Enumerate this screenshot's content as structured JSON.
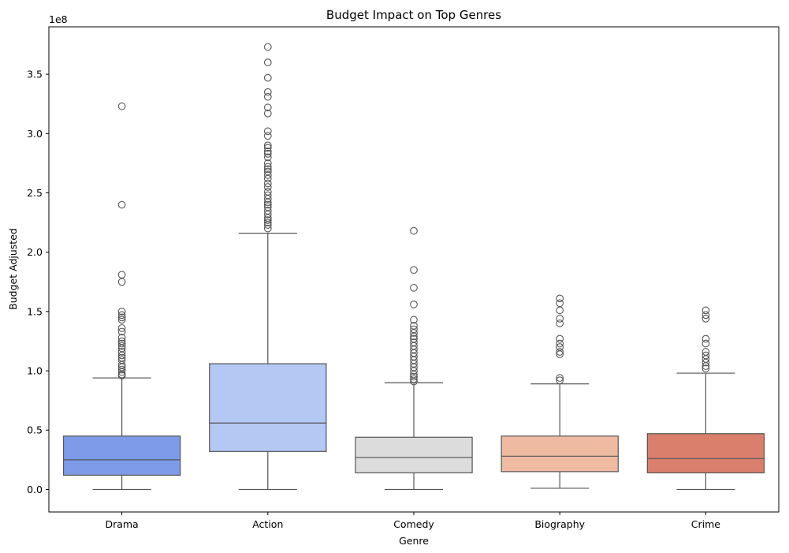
{
  "chart_data": {
    "type": "box",
    "title": "Budget Impact on Top Genres",
    "xlabel": "Genre",
    "ylabel": "Budget Adjusted",
    "offset_label": "1e8",
    "y_scale": 100000000,
    "ylim": [
      -0.19,
      3.9
    ],
    "yticks": [
      {
        "value": 0.0,
        "label": "0.0"
      },
      {
        "value": 0.5,
        "label": "0.5"
      },
      {
        "value": 1.0,
        "label": "1.0"
      },
      {
        "value": 1.5,
        "label": "1.5"
      },
      {
        "value": 2.0,
        "label": "2.0"
      },
      {
        "value": 2.5,
        "label": "2.5"
      },
      {
        "value": 3.0,
        "label": "3.0"
      },
      {
        "value": 3.5,
        "label": "3.5"
      }
    ],
    "grid": false,
    "legend": false,
    "categories": [
      "Drama",
      "Action",
      "Comedy",
      "Biography",
      "Crime"
    ],
    "boxes": [
      {
        "category": "Drama",
        "color": "#7d9be8",
        "whisker_low": 0.0,
        "q1": 0.12,
        "median": 0.25,
        "q3": 0.45,
        "whisker_high": 0.94,
        "outliers": [
          3.23,
          2.4,
          1.81,
          1.75,
          1.5,
          1.47,
          1.45,
          1.43,
          1.36,
          1.33,
          1.28,
          1.25,
          1.23,
          1.21,
          1.19,
          1.16,
          1.13,
          1.11,
          1.09,
          1.05,
          1.03,
          1.01,
          0.99,
          0.97,
          0.96
        ]
      },
      {
        "category": "Action",
        "color": "#b4c8f4",
        "whisker_low": 0.0,
        "q1": 0.32,
        "median": 0.56,
        "q3": 1.06,
        "whisker_high": 2.16,
        "outliers": [
          3.73,
          3.6,
          3.47,
          3.35,
          3.31,
          3.22,
          3.17,
          3.02,
          2.98,
          2.9,
          2.88,
          2.85,
          2.83,
          2.8,
          2.75,
          2.72,
          2.7,
          2.68,
          2.65,
          2.62,
          2.58,
          2.55,
          2.51,
          2.48,
          2.45,
          2.42,
          2.4,
          2.38,
          2.35,
          2.32,
          2.29,
          2.27,
          2.25,
          2.23,
          2.2
        ]
      },
      {
        "category": "Comedy",
        "color": "#dcdcdc",
        "whisker_low": 0.0,
        "q1": 0.14,
        "median": 0.27,
        "q3": 0.44,
        "whisker_high": 0.9,
        "outliers": [
          2.18,
          1.85,
          1.7,
          1.56,
          1.43,
          1.38,
          1.35,
          1.32,
          1.29,
          1.27,
          1.24,
          1.21,
          1.18,
          1.15,
          1.12,
          1.09,
          1.06,
          1.03,
          1.0,
          0.97,
          0.95,
          0.93,
          0.91
        ]
      },
      {
        "category": "Biography",
        "color": "#eebba2",
        "whisker_low": 0.01,
        "q1": 0.15,
        "median": 0.28,
        "q3": 0.45,
        "whisker_high": 0.89,
        "outliers": [
          1.61,
          1.57,
          1.51,
          1.44,
          1.4,
          1.27,
          1.23,
          1.2,
          1.16,
          1.14,
          0.94,
          0.92
        ]
      },
      {
        "category": "Crime",
        "color": "#d97f6c",
        "whisker_low": 0.0,
        "q1": 0.14,
        "median": 0.26,
        "q3": 0.47,
        "whisker_high": 0.98,
        "outliers": [
          1.51,
          1.47,
          1.44,
          1.27,
          1.23,
          1.16,
          1.13,
          1.1,
          1.07,
          1.04,
          1.02
        ]
      }
    ]
  }
}
